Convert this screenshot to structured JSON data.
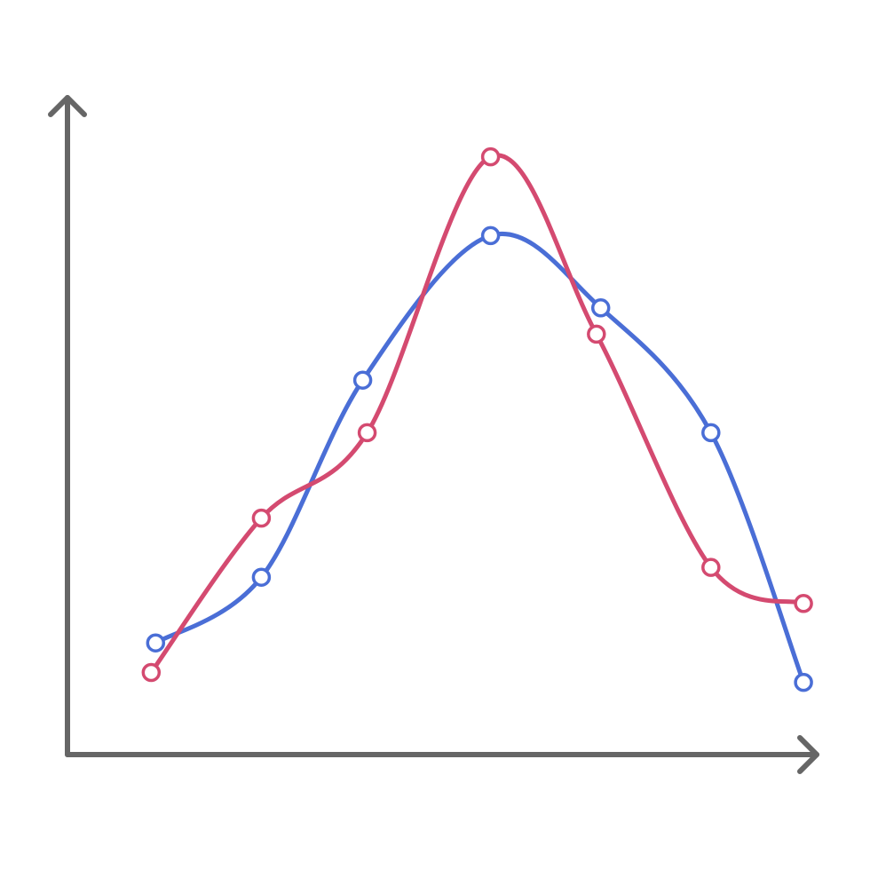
{
  "chart_data": {
    "type": "line",
    "smooth": true,
    "markers": "hollow-circle",
    "grid": false,
    "legend": "none",
    "axis_color": "#666666",
    "xlim": [
      0,
      8.5
    ],
    "ylim": [
      0,
      10
    ],
    "series": [
      {
        "color": "#4a6ed6",
        "points": [
          {
            "x": 1.0,
            "y": 1.7
          },
          {
            "x": 2.2,
            "y": 2.7
          },
          {
            "x": 3.35,
            "y": 5.7
          },
          {
            "x": 4.8,
            "y": 7.9
          },
          {
            "x": 6.05,
            "y": 6.8
          },
          {
            "x": 7.3,
            "y": 4.9
          },
          {
            "x": 8.35,
            "y": 1.1
          }
        ]
      },
      {
        "color": "#d44a70",
        "points": [
          {
            "x": 0.95,
            "y": 1.25
          },
          {
            "x": 2.2,
            "y": 3.6
          },
          {
            "x": 3.4,
            "y": 4.9
          },
          {
            "x": 4.8,
            "y": 9.1
          },
          {
            "x": 6.0,
            "y": 6.4
          },
          {
            "x": 7.3,
            "y": 2.85
          },
          {
            "x": 8.35,
            "y": 2.3
          }
        ]
      }
    ]
  }
}
